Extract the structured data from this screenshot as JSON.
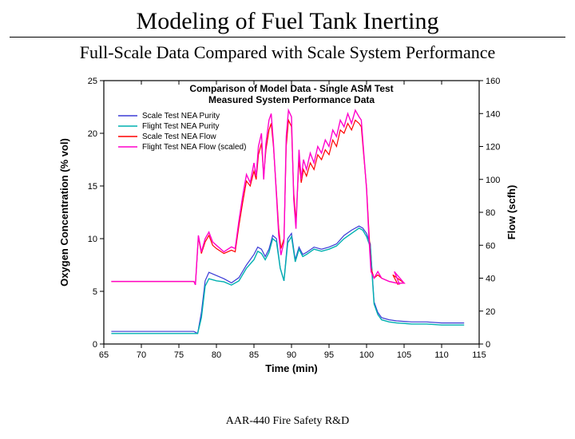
{
  "slide": {
    "title": "Modeling of Fuel Tank Inerting",
    "subtitle": "Full-Scale Data Compared with Scale System Performance",
    "footer": "AAR-440 Fire Safety R&D"
  },
  "chart": {
    "type": "line",
    "background_color": "#ffffff",
    "plot_border_color": "#000000",
    "plot_border_width": 1.2,
    "title_lines": [
      "Comparison of Model Data - Single ASM Test",
      "Measured System Performance Data"
    ],
    "title_color": "#000000",
    "title_fontsize": 12,
    "x_axis": {
      "label": "Time (min)",
      "min": 65,
      "max": 115,
      "ticks": [
        65,
        70,
        75,
        80,
        85,
        90,
        95,
        100,
        105,
        110,
        115
      ],
      "label_fontsize": 13,
      "tick_fontsize": 11
    },
    "y_left": {
      "label": "Oxygen Concentration (% vol)",
      "min": 0,
      "max": 25,
      "ticks": [
        0,
        5,
        10,
        15,
        20,
        25
      ],
      "label_fontsize": 13,
      "tick_fontsize": 11
    },
    "y_right": {
      "label": "Flow (scfh)",
      "min": 0,
      "max": 160,
      "ticks": [
        0,
        20,
        40,
        60,
        80,
        100,
        120,
        140,
        160
      ],
      "label_fontsize": 13,
      "tick_fontsize": 11
    },
    "legend": {
      "position": "inside-top-left",
      "items": [
        {
          "label": "Scale Test NEA Purity",
          "color": "#3b3bd6"
        },
        {
          "label": "Flight Test NEA Purity",
          "color": "#00b0b0"
        },
        {
          "label": "Scale Test NEA Flow",
          "color": "#ff0000"
        },
        {
          "label": "Flight Test NEA Flow (scaled)",
          "color": "#ff00cc"
        }
      ]
    },
    "series": [
      {
        "name": "Scale Test NEA Purity",
        "axis": "left",
        "color": "#3b3bd6",
        "line_width": 1.2,
        "points": [
          [
            66,
            1.2
          ],
          [
            68,
            1.2
          ],
          [
            70,
            1.2
          ],
          [
            72,
            1.2
          ],
          [
            74,
            1.2
          ],
          [
            76,
            1.2
          ],
          [
            77,
            1.2
          ],
          [
            77.5,
            1.0
          ],
          [
            78,
            3.0
          ],
          [
            78.5,
            6.0
          ],
          [
            79,
            6.8
          ],
          [
            80,
            6.5
          ],
          [
            81,
            6.2
          ],
          [
            82,
            5.8
          ],
          [
            83,
            6.3
          ],
          [
            84,
            7.5
          ],
          [
            85,
            8.5
          ],
          [
            85.5,
            9.2
          ],
          [
            86,
            9.0
          ],
          [
            86.5,
            8.3
          ],
          [
            87,
            9.0
          ],
          [
            87.5,
            10.3
          ],
          [
            88,
            10.0
          ],
          [
            88.5,
            7.2
          ],
          [
            89,
            6.0
          ],
          [
            89.5,
            10.0
          ],
          [
            90,
            10.5
          ],
          [
            90.5,
            8.0
          ],
          [
            91,
            9.2
          ],
          [
            91.5,
            8.5
          ],
          [
            92,
            8.7
          ],
          [
            93,
            9.2
          ],
          [
            94,
            9.0
          ],
          [
            95,
            9.2
          ],
          [
            96,
            9.5
          ],
          [
            97,
            10.3
          ],
          [
            98,
            10.8
          ],
          [
            99,
            11.2
          ],
          [
            99.5,
            11.0
          ],
          [
            100,
            10.5
          ],
          [
            100.5,
            9.5
          ],
          [
            101,
            4.0
          ],
          [
            101.5,
            3.0
          ],
          [
            102,
            2.5
          ],
          [
            103,
            2.3
          ],
          [
            104,
            2.2
          ],
          [
            106,
            2.1
          ],
          [
            108,
            2.1
          ],
          [
            110,
            2.0
          ],
          [
            113,
            2.0
          ]
        ]
      },
      {
        "name": "Flight Test NEA Purity",
        "axis": "left",
        "color": "#00b0b0",
        "line_width": 1.4,
        "points": [
          [
            66,
            1.0
          ],
          [
            68,
            1.0
          ],
          [
            70,
            1.0
          ],
          [
            72,
            1.0
          ],
          [
            74,
            1.0
          ],
          [
            76,
            1.0
          ],
          [
            77,
            1.0
          ],
          [
            77.5,
            1.0
          ],
          [
            78,
            2.5
          ],
          [
            78.5,
            5.5
          ],
          [
            79,
            6.2
          ],
          [
            80,
            6.0
          ],
          [
            81,
            5.9
          ],
          [
            82,
            5.6
          ],
          [
            83,
            6.0
          ],
          [
            84,
            7.2
          ],
          [
            85,
            8.0
          ],
          [
            85.5,
            8.8
          ],
          [
            86,
            8.6
          ],
          [
            86.5,
            8.0
          ],
          [
            87,
            8.7
          ],
          [
            87.5,
            10.0
          ],
          [
            88,
            9.7
          ],
          [
            88.5,
            7.2
          ],
          [
            89,
            6.0
          ],
          [
            89.5,
            9.6
          ],
          [
            90,
            10.2
          ],
          [
            90.5,
            7.8
          ],
          [
            91,
            9.0
          ],
          [
            91.5,
            8.3
          ],
          [
            92,
            8.5
          ],
          [
            93,
            9.0
          ],
          [
            94,
            8.8
          ],
          [
            95,
            9.0
          ],
          [
            96,
            9.3
          ],
          [
            97,
            10.0
          ],
          [
            98,
            10.5
          ],
          [
            99,
            11.0
          ],
          [
            99.5,
            10.8
          ],
          [
            100,
            10.2
          ],
          [
            100.5,
            9.2
          ],
          [
            101,
            3.8
          ],
          [
            101.5,
            2.8
          ],
          [
            102,
            2.3
          ],
          [
            103,
            2.1
          ],
          [
            104,
            2.0
          ],
          [
            106,
            1.9
          ],
          [
            108,
            1.9
          ],
          [
            110,
            1.8
          ],
          [
            113,
            1.8
          ]
        ]
      },
      {
        "name": "Scale Test NEA Flow",
        "axis": "right",
        "color": "#ff0000",
        "line_width": 1.2,
        "points": [
          [
            66,
            38
          ],
          [
            68,
            38
          ],
          [
            70,
            38
          ],
          [
            72,
            38
          ],
          [
            74,
            38
          ],
          [
            76,
            38
          ],
          [
            77,
            38
          ],
          [
            77.2,
            36
          ],
          [
            77.6,
            65
          ],
          [
            78,
            55
          ],
          [
            78.5,
            62
          ],
          [
            79,
            66
          ],
          [
            79.5,
            60
          ],
          [
            80,
            58
          ],
          [
            81,
            55
          ],
          [
            82,
            57
          ],
          [
            82.5,
            56
          ],
          [
            83,
            72
          ],
          [
            83.5,
            86
          ],
          [
            84,
            99
          ],
          [
            84.5,
            96
          ],
          [
            85,
            105
          ],
          [
            85.3,
            100
          ],
          [
            85.6,
            115
          ],
          [
            86,
            122
          ],
          [
            86.3,
            102
          ],
          [
            86.6,
            118
          ],
          [
            87,
            130
          ],
          [
            87.3,
            134
          ],
          [
            87.6,
            120
          ],
          [
            88,
            92
          ],
          [
            88.3,
            70
          ],
          [
            88.6,
            58
          ],
          [
            89,
            64
          ],
          [
            89.3,
            120
          ],
          [
            89.6,
            136
          ],
          [
            90,
            132
          ],
          [
            90.3,
            92
          ],
          [
            90.6,
            74
          ],
          [
            91,
            112
          ],
          [
            91.3,
            98
          ],
          [
            91.6,
            106
          ],
          [
            92,
            102
          ],
          [
            92.5,
            110
          ],
          [
            93,
            106
          ],
          [
            93.5,
            115
          ],
          [
            94,
            112
          ],
          [
            94.5,
            118
          ],
          [
            95,
            115
          ],
          [
            95.5,
            124
          ],
          [
            96,
            120
          ],
          [
            96.5,
            130
          ],
          [
            97,
            128
          ],
          [
            97.5,
            134
          ],
          [
            98,
            130
          ],
          [
            98.5,
            136
          ],
          [
            99,
            134
          ],
          [
            99.3,
            132
          ],
          [
            99.6,
            116
          ],
          [
            100,
            95
          ],
          [
            100.3,
            70
          ],
          [
            100.6,
            46
          ],
          [
            101,
            40
          ],
          [
            101.5,
            42
          ],
          [
            102,
            40
          ],
          [
            103,
            38
          ],
          [
            104,
            37
          ],
          [
            105,
            37
          ],
          [
            103.5,
            42
          ],
          [
            104.2,
            36
          ]
        ]
      },
      {
        "name": "Flight Test NEA Flow (scaled)",
        "axis": "right",
        "color": "#ff00cc",
        "line_width": 1.4,
        "points": [
          [
            66,
            38
          ],
          [
            68,
            38
          ],
          [
            70,
            38
          ],
          [
            72,
            38
          ],
          [
            74,
            38
          ],
          [
            76,
            38
          ],
          [
            77,
            38
          ],
          [
            77.2,
            36
          ],
          [
            77.6,
            66
          ],
          [
            78,
            56
          ],
          [
            78.5,
            64
          ],
          [
            79,
            68
          ],
          [
            79.5,
            62
          ],
          [
            80,
            60
          ],
          [
            81,
            56
          ],
          [
            82,
            59
          ],
          [
            82.5,
            58
          ],
          [
            83,
            75
          ],
          [
            83.5,
            90
          ],
          [
            84,
            103
          ],
          [
            84.5,
            98
          ],
          [
            85,
            110
          ],
          [
            85.3,
            102
          ],
          [
            85.6,
            120
          ],
          [
            86,
            128
          ],
          [
            86.3,
            100
          ],
          [
            86.6,
            122
          ],
          [
            87,
            136
          ],
          [
            87.3,
            140
          ],
          [
            87.6,
            122
          ],
          [
            88,
            90
          ],
          [
            88.3,
            66
          ],
          [
            88.6,
            54
          ],
          [
            89,
            62
          ],
          [
            89.3,
            126
          ],
          [
            89.6,
            142
          ],
          [
            90,
            138
          ],
          [
            90.3,
            88
          ],
          [
            90.6,
            70
          ],
          [
            91,
            118
          ],
          [
            91.3,
            100
          ],
          [
            91.6,
            112
          ],
          [
            92,
            106
          ],
          [
            92.5,
            116
          ],
          [
            93,
            110
          ],
          [
            93.5,
            120
          ],
          [
            94,
            116
          ],
          [
            94.5,
            124
          ],
          [
            95,
            120
          ],
          [
            95.5,
            130
          ],
          [
            96,
            126
          ],
          [
            96.5,
            136
          ],
          [
            97,
            132
          ],
          [
            97.5,
            140
          ],
          [
            98,
            134
          ],
          [
            98.5,
            142
          ],
          [
            99,
            138
          ],
          [
            99.3,
            136
          ],
          [
            99.6,
            118
          ],
          [
            100,
            94
          ],
          [
            100.3,
            66
          ],
          [
            100.6,
            44
          ],
          [
            101,
            40
          ],
          [
            101.5,
            44
          ],
          [
            102,
            40
          ],
          [
            103,
            38
          ],
          [
            104,
            37
          ],
          [
            105,
            37
          ],
          [
            103.7,
            44
          ],
          [
            104.4,
            36
          ]
        ]
      }
    ]
  }
}
